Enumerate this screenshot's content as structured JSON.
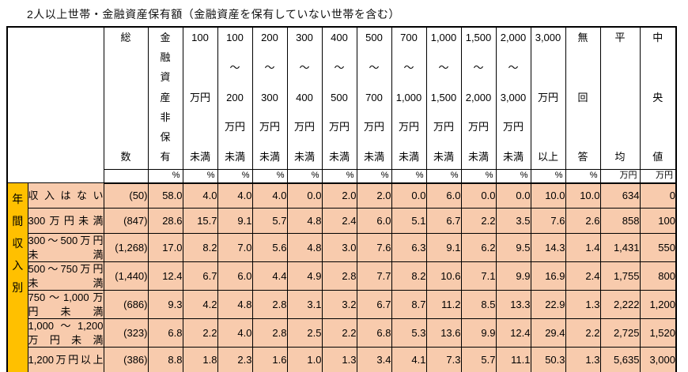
{
  "title": "2人以上世帯・金融資産保有額（金融資産を保有していない世帯を含む）",
  "colors": {
    "group_bg": "#ffc000",
    "row_bg": "#f8cbad",
    "border": "#000000",
    "header_bg": "#ffffff"
  },
  "chart_data": {
    "type": "table",
    "title": "2人以上世帯・金融資産保有額（金融資産を保有していない世帯を含む）",
    "row_group_label": "年間収入別",
    "columns": [
      {
        "label": "総\n数",
        "unit": ""
      },
      {
        "label": "金\n融\n資\n産\n非\n保\n有",
        "unit": "%"
      },
      {
        "label": "100\n万円\n未満",
        "unit": "%"
      },
      {
        "label": "100\n～\n200\n万円\n未満",
        "unit": "%"
      },
      {
        "label": "200\n～\n300\n万円\n未満",
        "unit": "%"
      },
      {
        "label": "300\n～\n400\n万円\n未満",
        "unit": "%"
      },
      {
        "label": "400\n～\n500\n万円\n未満",
        "unit": "%"
      },
      {
        "label": "500\n～\n700\n万円\n未満",
        "unit": "%"
      },
      {
        "label": "700\n～\n1,000\n万円\n未満",
        "unit": "%"
      },
      {
        "label": "1,000\n～\n1,500\n万円\n未満",
        "unit": "%"
      },
      {
        "label": "1,500\n～\n2,000\n万円\n未満",
        "unit": "%"
      },
      {
        "label": "2,000\n～\n3,000\n万円\n未満",
        "unit": "%"
      },
      {
        "label": "3,000\n万円\n以上",
        "unit": "%"
      },
      {
        "label": "無\n回\n答",
        "unit": "%"
      },
      {
        "label": "平\n均",
        "unit": "万円"
      },
      {
        "label": "中\n央\n値",
        "unit": "万円"
      }
    ],
    "rows": [
      {
        "label": "収入はない",
        "values": [
          "(50)",
          "58.0",
          "4.0",
          "4.0",
          "4.0",
          "0.0",
          "2.0",
          "2.0",
          "0.0",
          "6.0",
          "0.0",
          "0.0",
          "10.0",
          "10.0",
          "634",
          "0"
        ]
      },
      {
        "label": "300万円未満",
        "values": [
          "(847)",
          "28.6",
          "15.7",
          "9.1",
          "5.7",
          "4.8",
          "2.4",
          "6.0",
          "5.1",
          "6.7",
          "2.2",
          "3.5",
          "7.6",
          "2.6",
          "858",
          "100"
        ]
      },
      {
        "label": "300～500万円\n未満",
        "values": [
          "(1,268)",
          "17.0",
          "8.2",
          "7.0",
          "5.6",
          "4.8",
          "3.0",
          "7.6",
          "6.3",
          "9.1",
          "6.2",
          "9.5",
          "14.3",
          "1.4",
          "1,431",
          "550"
        ]
      },
      {
        "label": "500～750万円\n未満",
        "values": [
          "(1,440)",
          "12.4",
          "6.7",
          "6.0",
          "4.4",
          "4.9",
          "2.8",
          "7.7",
          "8.2",
          "10.6",
          "7.1",
          "9.9",
          "16.9",
          "2.4",
          "1,755",
          "800"
        ]
      },
      {
        "label": "750～1,000万\n円未満",
        "values": [
          "(686)",
          "9.3",
          "4.2",
          "4.8",
          "2.8",
          "3.1",
          "3.2",
          "6.7",
          "8.7",
          "11.2",
          "8.5",
          "13.3",
          "22.9",
          "1.3",
          "2,222",
          "1,200"
        ]
      },
      {
        "label": "1,000～1,200\n万円未満",
        "values": [
          "(323)",
          "6.8",
          "2.2",
          "4.0",
          "2.8",
          "2.5",
          "2.2",
          "6.8",
          "5.3",
          "13.6",
          "9.9",
          "12.4",
          "29.4",
          "2.2",
          "2,725",
          "1,520"
        ]
      },
      {
        "label": "1,200万円以上",
        "values": [
          "(386)",
          "8.8",
          "1.8",
          "2.3",
          "1.6",
          "1.0",
          "1.3",
          "3.4",
          "4.1",
          "7.3",
          "5.7",
          "11.1",
          "50.3",
          "1.3",
          "5,635",
          "3,000"
        ]
      }
    ]
  }
}
